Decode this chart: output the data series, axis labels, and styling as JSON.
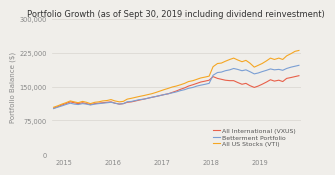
{
  "title": "Portfolio Growth (as of Sept 30, 2019 including dividend reinvestment)",
  "title_bold": "Portfolio Growth",
  "ylabel": "Portfolio Balance ($)",
  "xlabel": "",
  "xlim": [
    2014.75,
    2019.83
  ],
  "ylim": [
    0,
    300000
  ],
  "yticks": [
    0,
    75000,
    150000,
    225000,
    300000
  ],
  "ytick_labels": [
    "0",
    "75,000",
    "150,000",
    "225,000",
    "300,000"
  ],
  "xtick_labels": [
    "2015",
    "2016",
    "2017",
    "2018",
    "2019"
  ],
  "xtick_positions": [
    2015,
    2016,
    2017,
    2018,
    2019
  ],
  "background_color": "#f0eeea",
  "plot_bg_color": "#f0eeea",
  "grid_color": "#d8d5d0",
  "betterment_color": "#7b9fd4",
  "vti_color": "#f5a623",
  "vxus_color": "#e8604a",
  "legend_labels": [
    "Betterment Portfolio",
    "All US Stocks (VTI)",
    "All International (VXUS)"
  ],
  "title_fontsize": 6.0,
  "label_fontsize": 5.0,
  "tick_fontsize": 4.8,
  "legend_fontsize": 4.5,
  "betterment_x": [
    2014.79,
    2014.87,
    2014.96,
    2015.04,
    2015.13,
    2015.21,
    2015.29,
    2015.38,
    2015.46,
    2015.54,
    2015.63,
    2015.71,
    2015.79,
    2015.88,
    2015.96,
    2016.04,
    2016.13,
    2016.21,
    2016.29,
    2016.38,
    2016.46,
    2016.54,
    2016.63,
    2016.71,
    2016.79,
    2016.88,
    2016.96,
    2017.04,
    2017.13,
    2017.21,
    2017.29,
    2017.38,
    2017.46,
    2017.54,
    2017.63,
    2017.71,
    2017.79,
    2017.88,
    2017.96,
    2018.04,
    2018.13,
    2018.21,
    2018.29,
    2018.38,
    2018.46,
    2018.54,
    2018.63,
    2018.71,
    2018.79,
    2018.88,
    2018.96,
    2019.04,
    2019.13,
    2019.21,
    2019.29,
    2019.38,
    2019.46,
    2019.54,
    2019.63,
    2019.71,
    2019.79
  ],
  "betterment_y": [
    101000,
    104000,
    107000,
    110000,
    113000,
    111000,
    110000,
    112000,
    111000,
    109000,
    111000,
    112000,
    113000,
    114000,
    115000,
    113000,
    111000,
    112000,
    116000,
    117000,
    119000,
    121000,
    122000,
    124000,
    126000,
    128000,
    130000,
    132000,
    134000,
    136000,
    138000,
    141000,
    143000,
    146000,
    148000,
    151000,
    153000,
    155000,
    157000,
    175000,
    181000,
    182000,
    185000,
    187000,
    190000,
    188000,
    185000,
    187000,
    183000,
    178000,
    180000,
    183000,
    186000,
    189000,
    187000,
    188000,
    186000,
    190000,
    193000,
    195000,
    197000
  ],
  "vti_x": [
    2014.79,
    2014.87,
    2014.96,
    2015.04,
    2015.13,
    2015.21,
    2015.29,
    2015.38,
    2015.46,
    2015.54,
    2015.63,
    2015.71,
    2015.79,
    2015.88,
    2015.96,
    2016.04,
    2016.13,
    2016.21,
    2016.29,
    2016.38,
    2016.46,
    2016.54,
    2016.63,
    2016.71,
    2016.79,
    2016.88,
    2016.96,
    2017.04,
    2017.13,
    2017.21,
    2017.29,
    2017.38,
    2017.46,
    2017.54,
    2017.63,
    2017.71,
    2017.79,
    2017.88,
    2017.96,
    2018.04,
    2018.13,
    2018.21,
    2018.29,
    2018.38,
    2018.46,
    2018.54,
    2018.63,
    2018.71,
    2018.79,
    2018.88,
    2018.96,
    2019.04,
    2019.13,
    2019.21,
    2019.29,
    2019.38,
    2019.46,
    2019.54,
    2019.63,
    2019.71,
    2019.79
  ],
  "vti_y": [
    104000,
    107000,
    111000,
    114000,
    118000,
    116000,
    114000,
    117000,
    115000,
    112000,
    115000,
    116000,
    118000,
    119000,
    121000,
    118000,
    116000,
    117000,
    122000,
    124000,
    126000,
    128000,
    130000,
    132000,
    134000,
    137000,
    140000,
    143000,
    146000,
    149000,
    151000,
    154000,
    157000,
    161000,
    163000,
    166000,
    169000,
    171000,
    173000,
    194000,
    201000,
    202000,
    206000,
    210000,
    213000,
    209000,
    205000,
    208000,
    202000,
    193000,
    197000,
    201000,
    207000,
    213000,
    210000,
    213000,
    210000,
    218000,
    223000,
    228000,
    230000
  ],
  "vxus_x": [
    2014.79,
    2014.87,
    2014.96,
    2015.04,
    2015.13,
    2015.21,
    2015.29,
    2015.38,
    2015.46,
    2015.54,
    2015.63,
    2015.71,
    2015.79,
    2015.88,
    2015.96,
    2016.04,
    2016.13,
    2016.21,
    2016.29,
    2016.38,
    2016.46,
    2016.54,
    2016.63,
    2016.71,
    2016.79,
    2016.88,
    2016.96,
    2017.04,
    2017.13,
    2017.21,
    2017.29,
    2017.38,
    2017.46,
    2017.54,
    2017.63,
    2017.71,
    2017.79,
    2017.88,
    2017.96,
    2018.04,
    2018.13,
    2018.21,
    2018.29,
    2018.38,
    2018.46,
    2018.54,
    2018.63,
    2018.71,
    2018.79,
    2018.88,
    2018.96,
    2019.04,
    2019.13,
    2019.21,
    2019.29,
    2019.38,
    2019.46,
    2019.54,
    2019.63,
    2019.71,
    2019.79
  ],
  "vxus_y": [
    102000,
    105000,
    109000,
    112000,
    116000,
    114000,
    112000,
    114000,
    112000,
    110000,
    112000,
    113000,
    114000,
    115000,
    116000,
    113000,
    111000,
    112000,
    115000,
    116000,
    118000,
    120000,
    122000,
    124000,
    126000,
    128000,
    130000,
    132000,
    134000,
    137000,
    140000,
    144000,
    147000,
    151000,
    154000,
    157000,
    160000,
    162000,
    164000,
    172000,
    168000,
    166000,
    164000,
    163000,
    163000,
    159000,
    155000,
    157000,
    152000,
    148000,
    151000,
    155000,
    160000,
    165000,
    162000,
    164000,
    161000,
    168000,
    170000,
    172000,
    174000
  ]
}
